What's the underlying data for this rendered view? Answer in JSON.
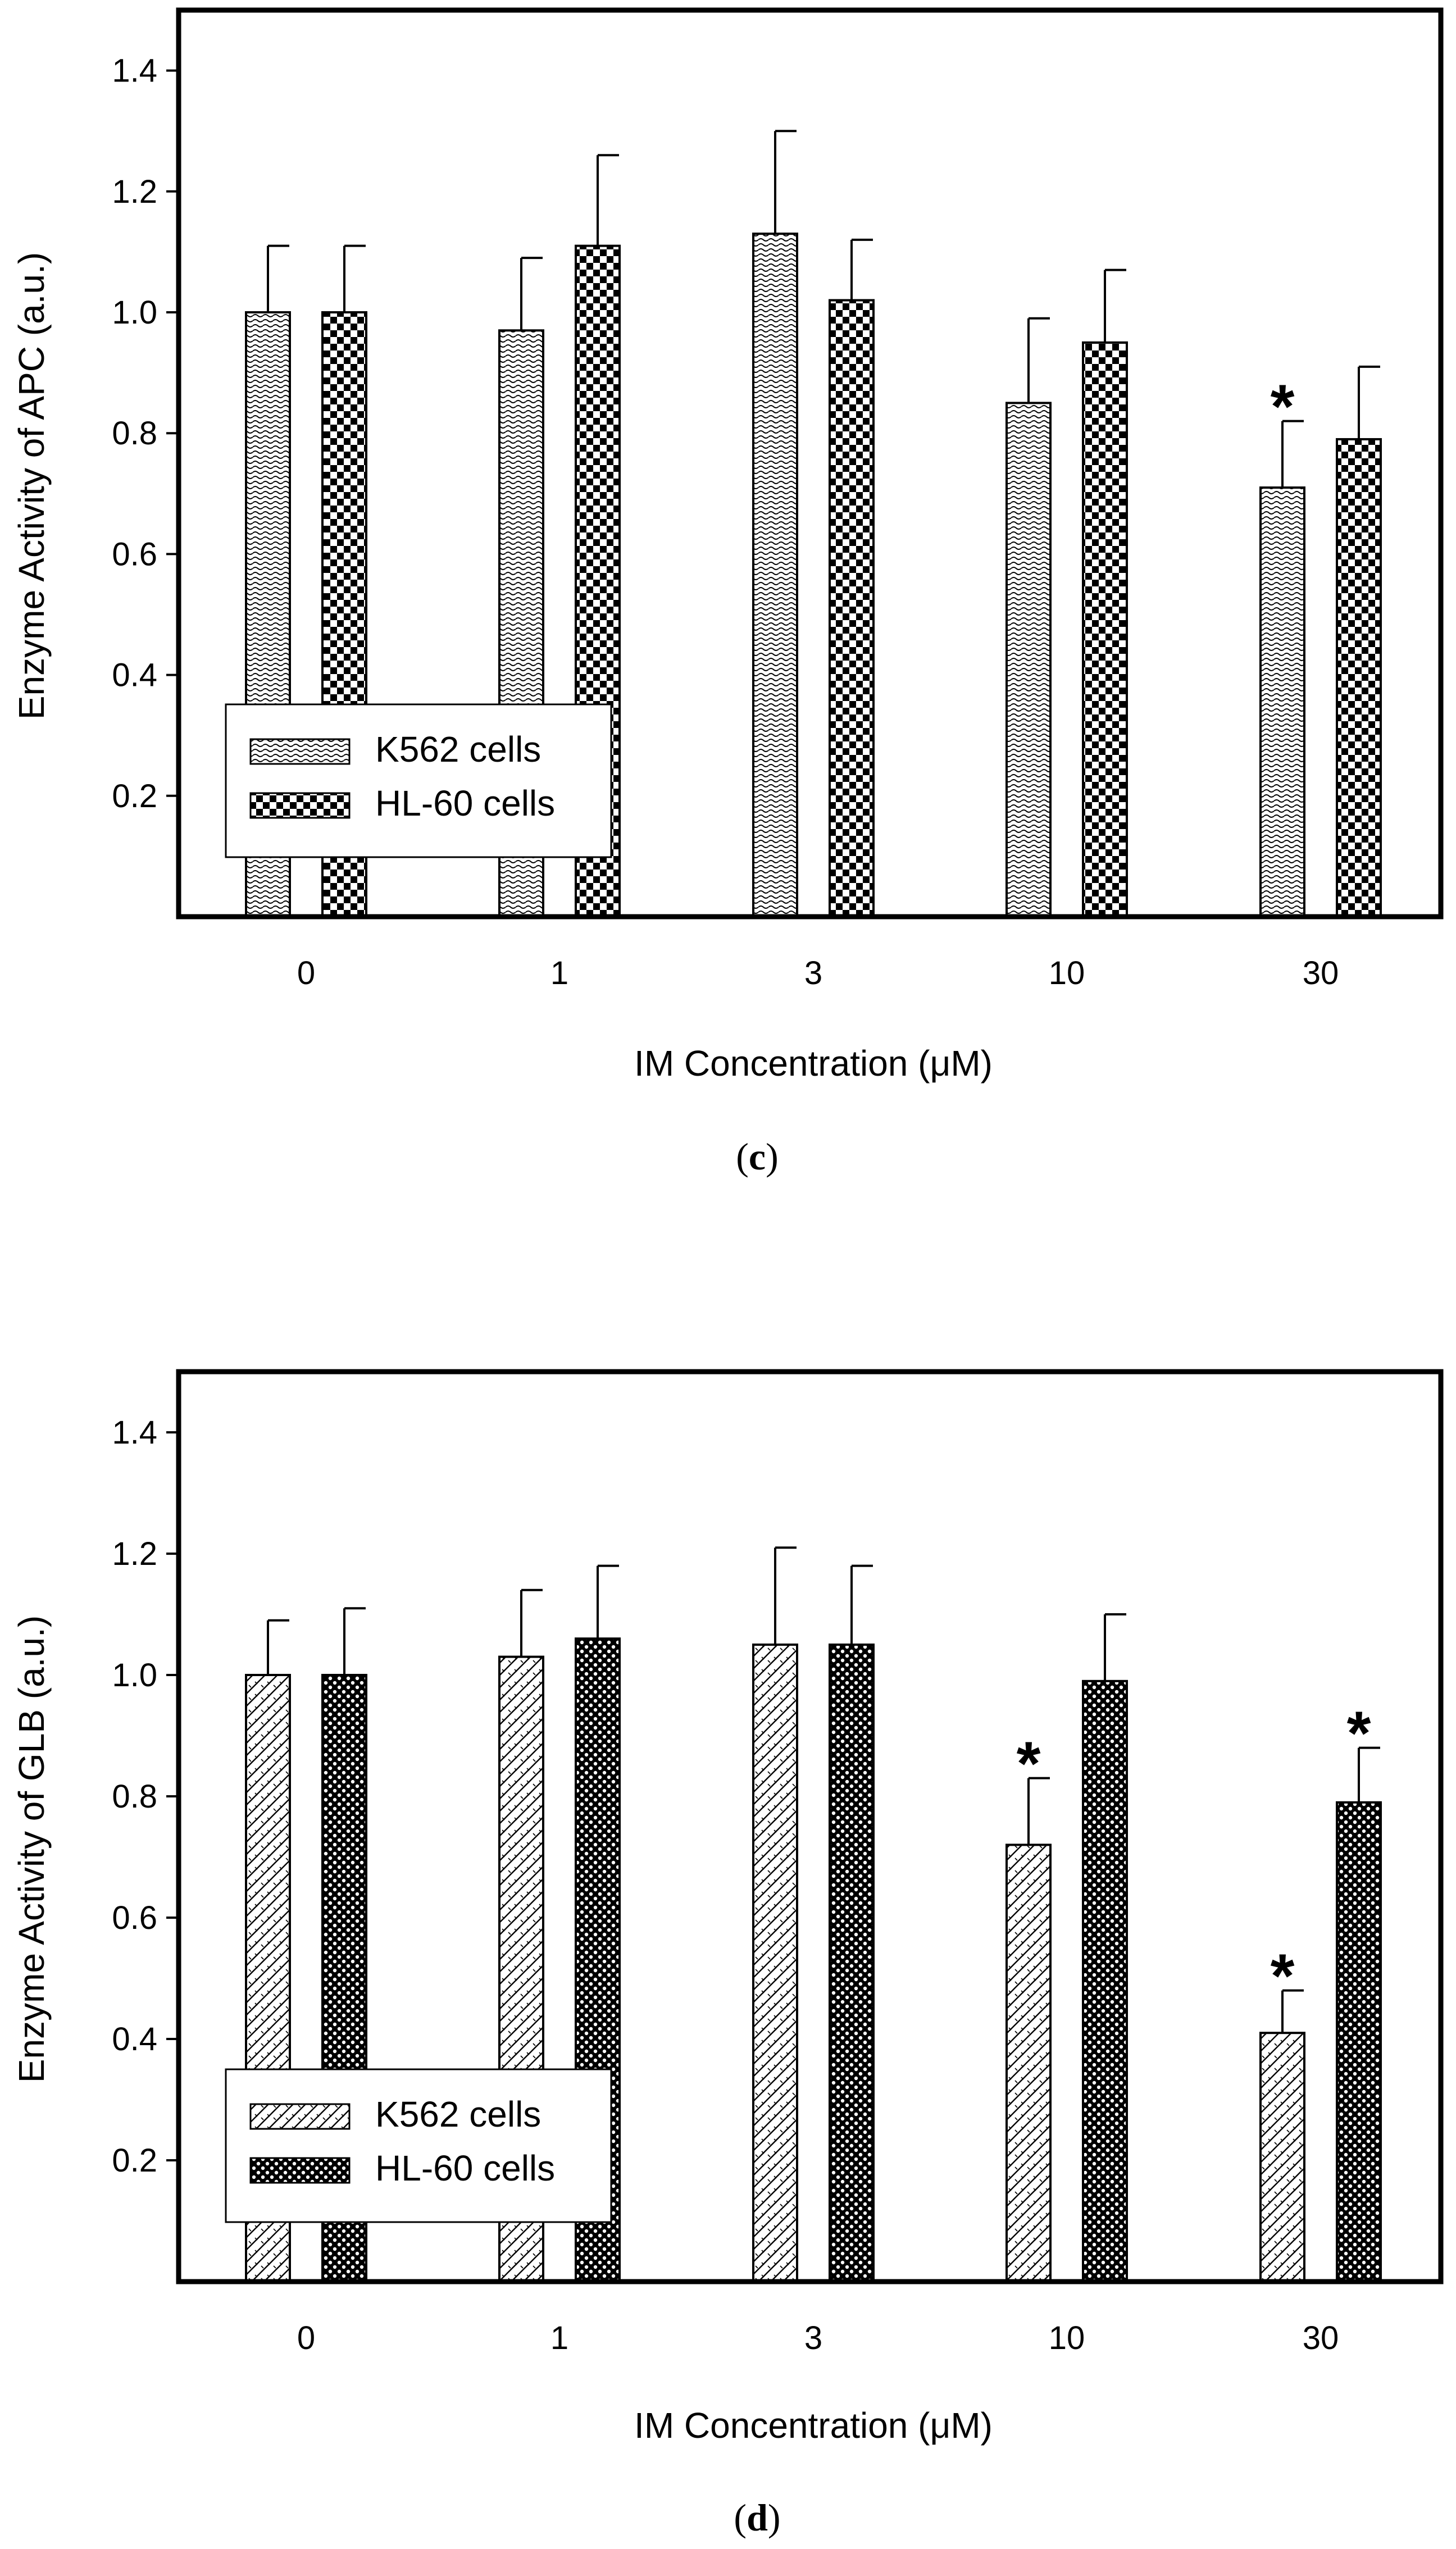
{
  "chart_data": [
    {
      "id": "c",
      "type": "bar",
      "panel_label": "c",
      "title": "",
      "xlabel": "IM Concentration (μM)",
      "ylabel": "Enzyme Activity of APC (a.u.)",
      "ylim": [
        0,
        1.5
      ],
      "yticks": [
        "0.2",
        "0.4",
        "0.6",
        "0.8",
        "1.0",
        "1.2",
        "1.4"
      ],
      "categories": [
        "0",
        "1",
        "3",
        "10",
        "30"
      ],
      "legend_position": "lower-left",
      "series": [
        {
          "name": "K562 cells",
          "pattern": "wave",
          "values": [
            1.0,
            0.97,
            1.13,
            0.85,
            0.71
          ],
          "errors": [
            0.11,
            0.12,
            0.17,
            0.14,
            0.11
          ],
          "significant": [
            false,
            false,
            false,
            false,
            true
          ]
        },
        {
          "name": "HL-60 cells",
          "pattern": "checker",
          "values": [
            1.0,
            1.11,
            1.02,
            0.95,
            0.79
          ],
          "errors": [
            0.11,
            0.15,
            0.1,
            0.12,
            0.12
          ],
          "significant": [
            false,
            false,
            false,
            false,
            false
          ]
        }
      ],
      "significance_marker": "*"
    },
    {
      "id": "d",
      "type": "bar",
      "panel_label": "d",
      "title": "",
      "xlabel": "IM Concentration (μM)",
      "ylabel": "Enzyme Activity of GLB (a.u.)",
      "ylim": [
        0,
        1.5
      ],
      "yticks": [
        "0.2",
        "0.4",
        "0.6",
        "0.8",
        "1.0",
        "1.2",
        "1.4"
      ],
      "categories": [
        "0",
        "1",
        "3",
        "10",
        "30"
      ],
      "legend_position": "lower-left",
      "series": [
        {
          "name": "K562 cells",
          "pattern": "diagonal",
          "values": [
            1.0,
            1.03,
            1.05,
            0.72,
            0.41
          ],
          "errors": [
            0.09,
            0.11,
            0.16,
            0.11,
            0.07
          ],
          "significant": [
            false,
            false,
            false,
            true,
            true
          ]
        },
        {
          "name": "HL-60 cells",
          "pattern": "dots",
          "values": [
            1.0,
            1.06,
            1.05,
            0.99,
            0.79
          ],
          "errors": [
            0.11,
            0.12,
            0.13,
            0.11,
            0.09
          ],
          "significant": [
            false,
            false,
            false,
            false,
            true
          ]
        }
      ],
      "significance_marker": "*"
    }
  ]
}
